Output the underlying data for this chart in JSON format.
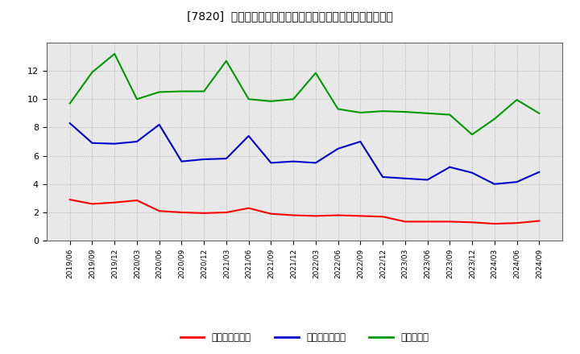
{
  "title": "[7820]  売上債権回転率、買入債務回転率、在庫回転率の推移",
  "x_labels": [
    "2019/06",
    "2019/09",
    "2019/12",
    "2020/03",
    "2020/06",
    "2020/09",
    "2020/12",
    "2021/03",
    "2021/06",
    "2021/09",
    "2021/12",
    "2022/03",
    "2022/06",
    "2022/09",
    "2022/12",
    "2023/03",
    "2023/06",
    "2023/09",
    "2023/12",
    "2024/03",
    "2024/06",
    "2024/09"
  ],
  "receivables_turnover": [
    2.9,
    2.6,
    2.7,
    2.85,
    2.1,
    2.0,
    1.95,
    2.0,
    2.3,
    1.9,
    1.8,
    1.75,
    1.8,
    1.75,
    1.7,
    1.35,
    1.35,
    1.35,
    1.3,
    1.2,
    1.25,
    1.4
  ],
  "payables_turnover": [
    8.3,
    6.9,
    6.85,
    7.0,
    8.2,
    5.6,
    5.75,
    5.8,
    7.4,
    5.5,
    5.6,
    5.5,
    6.5,
    7.0,
    4.5,
    4.4,
    4.3,
    5.2,
    4.8,
    4.0,
    4.15,
    4.85
  ],
  "inventory_turnover": [
    9.7,
    11.9,
    13.2,
    10.0,
    10.5,
    10.55,
    10.55,
    12.7,
    10.0,
    9.85,
    10.0,
    11.85,
    9.3,
    9.05,
    9.15,
    9.1,
    9.0,
    8.9,
    7.5,
    8.6,
    9.95,
    9.0
  ],
  "receivables_color": "#ff0000",
  "payables_color": "#0000cc",
  "inventory_color": "#009900",
  "fig_bg_color": "#ffffff",
  "plot_bg_color": "#e8e8e8",
  "ylim": [
    0.0,
    14.0
  ],
  "yticks": [
    0.0,
    2.0,
    4.0,
    6.0,
    8.0,
    10.0,
    12.0
  ],
  "legend_labels": [
    "売上債権回転率",
    "買入債務回転率",
    "在庫回転率"
  ]
}
